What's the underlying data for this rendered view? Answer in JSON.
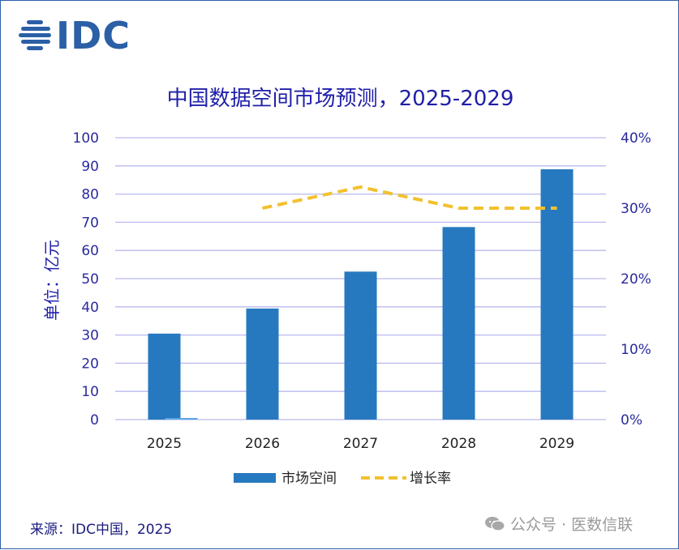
{
  "brand": {
    "logo_text": "IDC",
    "logo_color": "#2b5fa6"
  },
  "chart_data": {
    "type": "bar",
    "title": "中国数据空间市场预测，2025-2029",
    "ylabel": "单位：亿元",
    "categories": [
      "2025",
      "2026",
      "2027",
      "2028",
      "2029"
    ],
    "ylim": [
      0,
      100
    ],
    "y_ticks": [
      "0",
      "10",
      "20",
      "30",
      "40",
      "50",
      "60",
      "70",
      "80",
      "90",
      "100"
    ],
    "y2lim": [
      0,
      40
    ],
    "y2_ticks": [
      "0%",
      "10%",
      "20%",
      "30%",
      "40%"
    ],
    "grid": true,
    "legend_position": "bottom",
    "series": [
      {
        "name": "市场空间",
        "type": "bar",
        "axis": "left",
        "values": [
          30.5,
          39.4,
          52.5,
          68.3,
          88.8
        ],
        "color": "#2779bf"
      },
      {
        "name": "增长率",
        "type": "line",
        "style": "dashed",
        "axis": "right",
        "values": [
          null,
          30,
          33,
          30,
          30
        ],
        "color": "#f2c12e"
      }
    ]
  },
  "footer": {
    "source": "来源：IDC中国，2025",
    "watermark": "公众号 · 医数信联"
  }
}
